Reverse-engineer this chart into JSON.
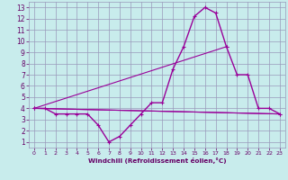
{
  "xlabel": "Windchill (Refroidissement éolien,°C)",
  "bg_color": "#c8ecec",
  "grid_color": "#9999bb",
  "line_color": "#990099",
  "text_color": "#660066",
  "xlim": [
    -0.5,
    23.5
  ],
  "ylim": [
    0.5,
    13.5
  ],
  "xticks": [
    0,
    1,
    2,
    3,
    4,
    5,
    6,
    7,
    8,
    9,
    10,
    11,
    12,
    13,
    14,
    15,
    16,
    17,
    18,
    19,
    20,
    21,
    22,
    23
  ],
  "yticks": [
    1,
    2,
    3,
    4,
    5,
    6,
    7,
    8,
    9,
    10,
    11,
    12,
    13
  ],
  "series1_x": [
    0,
    1,
    2,
    3,
    4,
    5,
    6,
    7,
    8,
    9,
    10,
    11,
    12,
    13,
    14,
    15,
    16,
    17,
    18,
    19,
    20,
    21,
    22,
    23
  ],
  "series1_y": [
    4,
    4,
    3.5,
    3.5,
    3.5,
    3.5,
    2.5,
    1,
    1.5,
    2.5,
    3.5,
    4.5,
    4.5,
    7.5,
    9.5,
    12.2,
    13,
    12.5,
    9.5,
    7,
    7,
    4,
    4,
    3.5
  ],
  "series2_x": [
    0,
    23
  ],
  "series2_y": [
    4,
    3.5
  ],
  "series3_x": [
    0,
    18
  ],
  "series3_y": [
    4,
    9.5
  ],
  "series4_x": [
    0,
    23
  ],
  "series4_y": [
    4,
    3.5
  ]
}
